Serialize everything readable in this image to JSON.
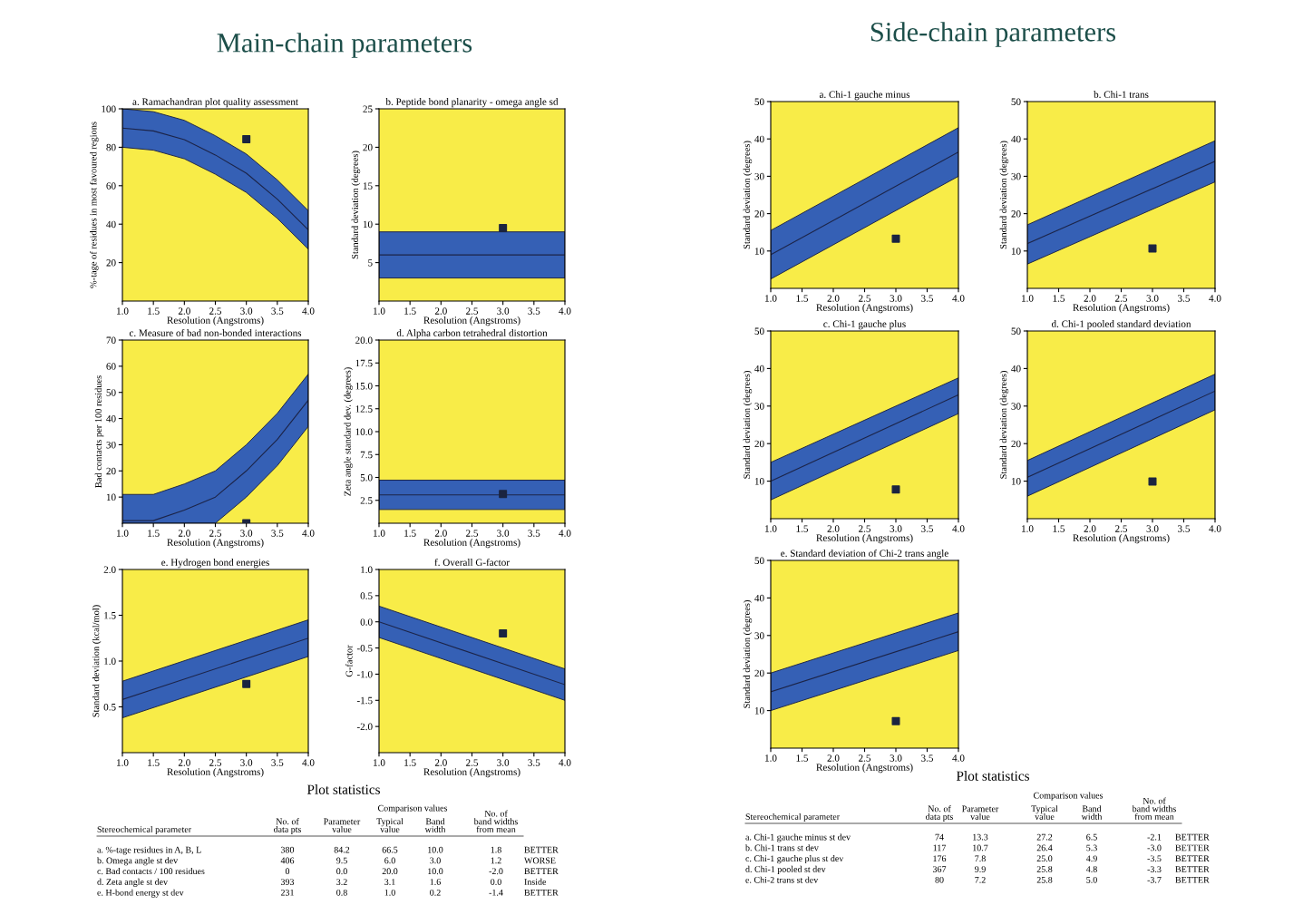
{
  "chart_data": [
    {
      "type": "other",
      "title": "Main-chain parameters"
    },
    {
      "type": "line",
      "title": "a. Ramachandran plot quality assessment",
      "xlabel": "Resolution (Angstroms)",
      "ylabel": "%-tage of residues in most favoured regions",
      "xlim": [
        1,
        4
      ],
      "xticks": [
        {
          "value": 1,
          "label": "1.0"
        },
        1.5,
        {
          "value": 2,
          "label": "2.0"
        },
        2.5,
        {
          "value": 3,
          "label": "3.0"
        },
        3.5,
        {
          "value": 4,
          "label": "4.0"
        }
      ],
      "ylim": [
        0,
        100
      ],
      "yticks": [
        20,
        40,
        60,
        80,
        100
      ],
      "series": [
        {
          "type": "line",
          "color": "#1c2448",
          "x": [
            1,
            1.5,
            2,
            2.5,
            3,
            3.5,
            4
          ],
          "values": [
            90,
            88.5,
            84,
            76,
            66.5,
            53,
            37
          ],
          "lower": [
            80,
            78.5,
            74,
            66,
            56.5,
            43,
            27
          ],
          "upper": [
            100,
            98.5,
            94,
            86,
            76.5,
            63,
            47
          ]
        },
        {
          "type": "scatter",
          "color": "#1b2440",
          "marker": "square",
          "x": [
            3
          ],
          "values": [
            84.2
          ]
        }
      ]
    },
    {
      "type": "line",
      "title": "b. Peptide bond planarity - omega angle sd",
      "xlabel": "Resolution (Angstroms)",
      "ylabel": "Standard deviation (degrees)",
      "xlim": [
        1,
        4
      ],
      "xticks": [
        {
          "value": 1,
          "label": "1.0"
        },
        1.5,
        {
          "value": 2,
          "label": "2.0"
        },
        2.5,
        {
          "value": 3,
          "label": "3.0"
        },
        3.5,
        {
          "value": 4,
          "label": "4.0"
        }
      ],
      "ylim": [
        0,
        25
      ],
      "yticks": [
        5,
        10,
        15,
        20,
        25
      ],
      "series": [
        {
          "type": "line",
          "color": "#1c2448",
          "x": [
            1,
            4
          ],
          "values": [
            6,
            6
          ],
          "lower": [
            3,
            3
          ],
          "upper": [
            9,
            9
          ]
        },
        {
          "type": "scatter",
          "color": "#1b2440",
          "marker": "square",
          "x": [
            3
          ],
          "values": [
            9.5
          ]
        }
      ]
    },
    {
      "type": "line",
      "title": "c. Measure of bad non-bonded interactions",
      "xlabel": "Resolution (Angstroms)",
      "ylabel": "Bad contacts per 100 residues",
      "xlim": [
        1,
        4
      ],
      "xticks": [
        {
          "value": 1,
          "label": "1.0"
        },
        1.5,
        {
          "value": 2,
          "label": "2.0"
        },
        2.5,
        {
          "value": 3,
          "label": "3.0"
        },
        3.5,
        {
          "value": 4,
          "label": "4.0"
        }
      ],
      "ylim": [
        0,
        70
      ],
      "yticks": [
        10,
        20,
        30,
        40,
        50,
        60,
        70
      ],
      "series": [
        {
          "type": "line",
          "color": "#1c2448",
          "x": [
            1,
            1.5,
            2,
            2.5,
            3,
            3.5,
            4
          ],
          "values": [
            1,
            1,
            5,
            10,
            20,
            32,
            47
          ],
          "lower": [
            0,
            0,
            0,
            0,
            10,
            22,
            37
          ],
          "upper": [
            11,
            11,
            15,
            20,
            30,
            42,
            57
          ]
        },
        {
          "type": "scatter",
          "color": "#1b2440",
          "marker": "square",
          "x": [
            3
          ],
          "values": [
            0
          ]
        }
      ]
    },
    {
      "type": "line",
      "title": "d. Alpha carbon tetrahedral distortion",
      "xlabel": "Resolution (Angstroms)",
      "ylabel": "Zeta angle standard dev. (degrees)",
      "xlim": [
        1,
        4
      ],
      "xticks": [
        {
          "value": 1,
          "label": "1.0"
        },
        1.5,
        {
          "value": 2,
          "label": "2.0"
        },
        2.5,
        {
          "value": 3,
          "label": "3.0"
        },
        3.5,
        {
          "value": 4,
          "label": "4.0"
        }
      ],
      "ylim": [
        0,
        20
      ],
      "yticks": [
        2.5,
        {
          "value": 5,
          "label": "5.0"
        },
        7.5,
        {
          "value": 10,
          "label": "10.0"
        },
        12.5,
        {
          "value": 15,
          "label": "15.0"
        },
        17.5,
        {
          "value": 20,
          "label": "20.0"
        }
      ],
      "series": [
        {
          "type": "line",
          "color": "#1c2448",
          "x": [
            1,
            4
          ],
          "values": [
            3.1,
            3.1
          ],
          "lower": [
            1.5,
            1.5
          ],
          "upper": [
            4.7,
            4.7
          ]
        },
        {
          "type": "scatter",
          "color": "#1b2440",
          "marker": "square",
          "x": [
            3
          ],
          "values": [
            3.2
          ]
        }
      ]
    },
    {
      "type": "line",
      "title": "e. Hydrogen bond energies",
      "xlabel": "Resolution (Angstroms)",
      "ylabel": "Standard deviation (kcal/mol)",
      "xlim": [
        1,
        4
      ],
      "xticks": [
        {
          "value": 1,
          "label": "1.0"
        },
        1.5,
        {
          "value": 2,
          "label": "2.0"
        },
        2.5,
        {
          "value": 3,
          "label": "3.0"
        },
        3.5,
        {
          "value": 4,
          "label": "4.0"
        }
      ],
      "ylim": [
        0,
        2
      ],
      "yticks": [
        0.5,
        {
          "value": 1,
          "label": "1.0"
        },
        1.5,
        {
          "value": 2,
          "label": "2.0"
        }
      ],
      "series": [
        {
          "type": "line",
          "color": "#1c2448",
          "x": [
            1,
            4
          ],
          "values": [
            0.58,
            1.25
          ],
          "lower": [
            0.38,
            1.05
          ],
          "upper": [
            0.78,
            1.45
          ]
        },
        {
          "type": "scatter",
          "color": "#1b2440",
          "marker": "square",
          "x": [
            3
          ],
          "values": [
            0.75
          ]
        }
      ]
    },
    {
      "type": "line",
      "title": "f. Overall G-factor",
      "xlabel": "Resolution (Angstroms)",
      "ylabel": "G-factor",
      "xlim": [
        1,
        4
      ],
      "xticks": [
        {
          "value": 1,
          "label": "1.0"
        },
        1.5,
        {
          "value": 2,
          "label": "2.0"
        },
        2.5,
        {
          "value": 3,
          "label": "3.0"
        },
        3.5,
        {
          "value": 4,
          "label": "4.0"
        }
      ],
      "ylim": [
        -2.5,
        1
      ],
      "yticks": [
        {
          "value": -2,
          "label": "-2.0"
        },
        -1.5,
        {
          "value": -1,
          "label": "-1.0"
        },
        -0.5,
        {
          "value": 0,
          "label": "0.0"
        },
        0.5,
        {
          "value": 1,
          "label": "1.0"
        }
      ],
      "series": [
        {
          "type": "line",
          "color": "#1c2448",
          "x": [
            1,
            4
          ],
          "values": [
            0,
            -1.2
          ],
          "lower": [
            -0.3,
            -1.5
          ],
          "upper": [
            0.3,
            -0.9
          ]
        },
        {
          "type": "scatter",
          "color": "#1b2440",
          "marker": "square",
          "x": [
            3
          ],
          "values": [
            -0.22
          ]
        }
      ]
    },
    {
      "type": "other",
      "title": "Plot statistics",
      "annotations": [
        "Comparison values",
        "Stereochemical parameter",
        "No. of\ndata pts",
        "Parameter\nvalue",
        "Typical\nvalue",
        "Band\nwidth",
        "No. of\nband widths\nfrom mean",
        "a. %-tage residues in A, B, L",
        "380",
        "84.2",
        "66.5",
        "10.0",
        "1.8",
        "BETTER",
        "b. Omega angle st dev",
        "406",
        "9.5",
        "6.0",
        "3.0",
        "1.2",
        "WORSE",
        "c. Bad contacts / 100 residues",
        "0",
        "0.0",
        "20.0",
        "10.0",
        "-2.0",
        "BETTER",
        "d. Zeta angle st dev",
        "393",
        "3.2",
        "3.1",
        "1.6",
        "0.0",
        "Inside",
        "e. H-bond energy st dev",
        "231",
        "0.8",
        "1.0",
        "0.2",
        "-1.4",
        "BETTER"
      ]
    },
    {
      "type": "other",
      "title": "Side-chain parameters"
    },
    {
      "type": "line",
      "title": "a. Chi-1 gauche minus",
      "xlabel": "Resolution (Angstroms)",
      "ylabel": "Standard deviation (degrees)",
      "xlim": [
        1,
        4
      ],
      "xticks": [
        {
          "value": 1,
          "label": "1.0"
        },
        1.5,
        {
          "value": 2,
          "label": "2.0"
        },
        2.5,
        {
          "value": 3,
          "label": "3.0"
        },
        3.5,
        {
          "value": 4,
          "label": "4.0"
        }
      ],
      "ylim": [
        0,
        50
      ],
      "yticks": [
        10,
        20,
        30,
        40,
        50
      ],
      "series": [
        {
          "type": "line",
          "color": "#1c2448",
          "x": [
            1,
            4
          ],
          "values": [
            9,
            36.5
          ],
          "lower": [
            2.5,
            30
          ],
          "upper": [
            15.5,
            43
          ]
        },
        {
          "type": "scatter",
          "color": "#1b2440",
          "marker": "square",
          "x": [
            3
          ],
          "values": [
            13.3
          ]
        }
      ]
    },
    {
      "type": "line",
      "title": "b. Chi-1 trans",
      "xlabel": "Resolution (Angstroms)",
      "ylabel": "Standard deviation (degrees)",
      "xlim": [
        1,
        4
      ],
      "xticks": [
        {
          "value": 1,
          "label": "1.0"
        },
        1.5,
        {
          "value": 2,
          "label": "2.0"
        },
        2.5,
        {
          "value": 3,
          "label": "3.0"
        },
        3.5,
        {
          "value": 4,
          "label": "4.0"
        }
      ],
      "ylim": [
        0,
        50
      ],
      "yticks": [
        10,
        20,
        30,
        40,
        50
      ],
      "series": [
        {
          "type": "line",
          "color": "#1c2448",
          "x": [
            1,
            4
          ],
          "values": [
            12,
            34
          ],
          "lower": [
            6.5,
            28.5
          ],
          "upper": [
            17,
            39.5
          ]
        },
        {
          "type": "scatter",
          "color": "#1b2440",
          "marker": "square",
          "x": [
            3
          ],
          "values": [
            10.7
          ]
        }
      ]
    },
    {
      "type": "line",
      "title": "c. Chi-1 gauche plus",
      "xlabel": "Resolution (Angstroms)",
      "ylabel": "Standard deviation (degrees)",
      "xlim": [
        1,
        4
      ],
      "xticks": [
        {
          "value": 1,
          "label": "1.0"
        },
        1.5,
        {
          "value": 2,
          "label": "2.0"
        },
        2.5,
        {
          "value": 3,
          "label": "3.0"
        },
        3.5,
        {
          "value": 4,
          "label": "4.0"
        }
      ],
      "ylim": [
        0,
        50
      ],
      "yticks": [
        10,
        20,
        30,
        40,
        50
      ],
      "series": [
        {
          "type": "line",
          "color": "#1c2448",
          "x": [
            1,
            4
          ],
          "values": [
            10,
            33
          ],
          "lower": [
            5,
            28
          ],
          "upper": [
            15,
            37.5
          ]
        },
        {
          "type": "scatter",
          "color": "#1b2440",
          "marker": "square",
          "x": [
            3
          ],
          "values": [
            7.8
          ]
        }
      ]
    },
    {
      "type": "line",
      "title": "d. Chi-1 pooled standard deviation",
      "xlabel": "Resolution (Angstroms)",
      "ylabel": "Standard deviation (degrees)",
      "xlim": [
        1,
        4
      ],
      "xticks": [
        {
          "value": 1,
          "label": "1.0"
        },
        1.5,
        {
          "value": 2,
          "label": "2.0"
        },
        2.5,
        {
          "value": 3,
          "label": "3.0"
        },
        3.5,
        {
          "value": 4,
          "label": "4.0"
        }
      ],
      "ylim": [
        0,
        50
      ],
      "yticks": [
        10,
        20,
        30,
        40,
        50
      ],
      "series": [
        {
          "type": "line",
          "color": "#1c2448",
          "x": [
            1,
            4
          ],
          "values": [
            11,
            34
          ],
          "lower": [
            6,
            29
          ],
          "upper": [
            15.5,
            38.5
          ]
        },
        {
          "type": "scatter",
          "color": "#1b2440",
          "marker": "square",
          "x": [
            3
          ],
          "values": [
            9.9
          ]
        }
      ]
    },
    {
      "type": "line",
      "title": "e. Standard deviation of Chi-2 trans angle",
      "xlabel": "Resolution (Angstroms)",
      "ylabel": "Standard deviation (degrees)",
      "xlim": [
        1,
        4
      ],
      "xticks": [
        {
          "value": 1,
          "label": "1.0"
        },
        1.5,
        {
          "value": 2,
          "label": "2.0"
        },
        2.5,
        {
          "value": 3,
          "label": "3.0"
        },
        3.5,
        {
          "value": 4,
          "label": "4.0"
        }
      ],
      "ylim": [
        0,
        50
      ],
      "yticks": [
        10,
        20,
        30,
        40,
        50
      ],
      "series": [
        {
          "type": "line",
          "color": "#1c2448",
          "x": [
            1,
            4
          ],
          "values": [
            15,
            31
          ],
          "lower": [
            10,
            26
          ],
          "upper": [
            20,
            36
          ]
        },
        {
          "type": "scatter",
          "color": "#1b2440",
          "marker": "square",
          "x": [
            3
          ],
          "values": [
            7.2
          ]
        }
      ]
    },
    {
      "type": "other",
      "title": "Plot statistics",
      "annotations": [
        "Comparison values",
        "Stereochemical parameter",
        "No. of\ndata pts",
        "Parameter\nvalue",
        "Typical\nvalue",
        "Band\nwidth",
        "No. of\nband widths\nfrom mean",
        "a. Chi-1 gauche minus st dev",
        "74",
        "13.3",
        "27.2",
        "6.5",
        "-2.1",
        "BETTER",
        "b. Chi-1 trans st dev",
        "117",
        "10.7",
        "26.4",
        "5.3",
        "-3.0",
        "BETTER",
        "c. Chi-1 gauche plus st dev",
        "176",
        "7.8",
        "25.0",
        "4.9",
        "-3.5",
        "BETTER",
        "d. Chi-1 pooled st dev",
        "367",
        "9.9",
        "25.8",
        "4.8",
        "-3.3",
        "BETTER",
        "e. Chi-2 trans st dev",
        "80",
        "7.2",
        "25.8",
        "5.0",
        "-3.7",
        "BETTER"
      ]
    }
  ]
}
